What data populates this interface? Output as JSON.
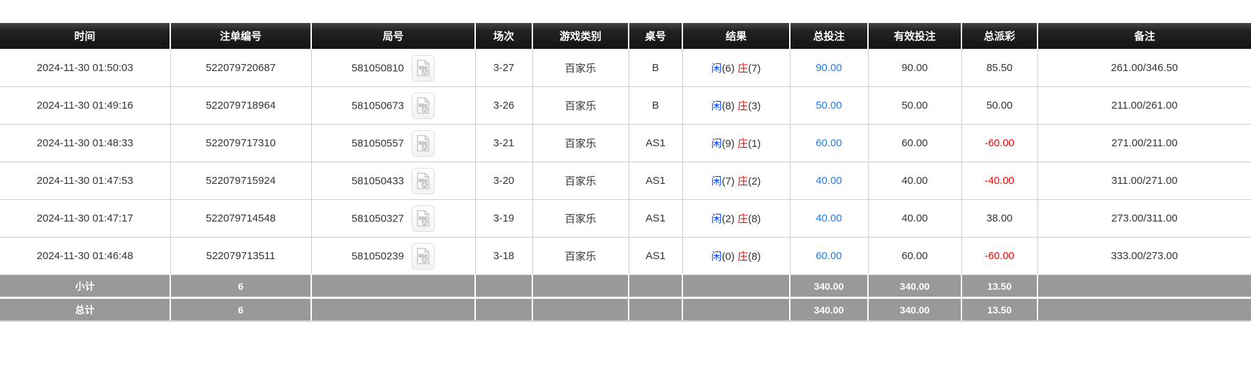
{
  "colors": {
    "header_bg": "#161616",
    "header_text": "#ffffff",
    "summary_bg": "#999999",
    "player_blue": "#0040ff",
    "banker_red": "#ff0000",
    "bet_blue": "#1d7df2",
    "negative_red": "#ff0000"
  },
  "table": {
    "columns": [
      {
        "key": "time",
        "label": "时间"
      },
      {
        "key": "order_no",
        "label": "注单编号"
      },
      {
        "key": "round_no",
        "label": "局号"
      },
      {
        "key": "session",
        "label": "场次"
      },
      {
        "key": "game_type",
        "label": "游戏类别"
      },
      {
        "key": "table_no",
        "label": "桌号"
      },
      {
        "key": "result",
        "label": "结果"
      },
      {
        "key": "total_bet",
        "label": "总投注"
      },
      {
        "key": "valid_bet",
        "label": "有效投注"
      },
      {
        "key": "payout",
        "label": "总派彩"
      },
      {
        "key": "remark",
        "label": "备注"
      }
    ],
    "icons": {
      "round_video_icon": "video-replay-icon"
    },
    "rows": [
      {
        "time": "2024-11-30 01:50:03",
        "order_no": "522079720687",
        "round_no": "581050810",
        "session": "3-27",
        "game_type": "百家乐",
        "table_no": "B",
        "result": {
          "player_label": "闲",
          "player_score": "(6)",
          "banker_label": "庄",
          "banker_score": "(7)"
        },
        "total_bet": "90.00",
        "valid_bet": "90.00",
        "payout": "85.50",
        "remark": "261.00/346.50"
      },
      {
        "time": "2024-11-30 01:49:16",
        "order_no": "522079718964",
        "round_no": "581050673",
        "session": "3-26",
        "game_type": "百家乐",
        "table_no": "B",
        "result": {
          "player_label": "闲",
          "player_score": "(8)",
          "banker_label": "庄",
          "banker_score": "(3)"
        },
        "total_bet": "50.00",
        "valid_bet": "50.00",
        "payout": "50.00",
        "remark": "211.00/261.00"
      },
      {
        "time": "2024-11-30 01:48:33",
        "order_no": "522079717310",
        "round_no": "581050557",
        "session": "3-21",
        "game_type": "百家乐",
        "table_no": "AS1",
        "result": {
          "player_label": "闲",
          "player_score": "(9)",
          "banker_label": "庄",
          "banker_score": "(1)"
        },
        "total_bet": "60.00",
        "valid_bet": "60.00",
        "payout": "-60.00",
        "remark": "271.00/211.00"
      },
      {
        "time": "2024-11-30 01:47:53",
        "order_no": "522079715924",
        "round_no": "581050433",
        "session": "3-20",
        "game_type": "百家乐",
        "table_no": "AS1",
        "result": {
          "player_label": "闲",
          "player_score": "(7)",
          "banker_label": "庄",
          "banker_score": "(2)"
        },
        "total_bet": "40.00",
        "valid_bet": "40.00",
        "payout": "-40.00",
        "remark": "311.00/271.00"
      },
      {
        "time": "2024-11-30 01:47:17",
        "order_no": "522079714548",
        "round_no": "581050327",
        "session": "3-19",
        "game_type": "百家乐",
        "table_no": "AS1",
        "result": {
          "player_label": "闲",
          "player_score": "(2)",
          "banker_label": "庄",
          "banker_score": "(8)"
        },
        "total_bet": "40.00",
        "valid_bet": "40.00",
        "payout": "38.00",
        "remark": "273.00/311.00"
      },
      {
        "time": "2024-11-30 01:46:48",
        "order_no": "522079713511",
        "round_no": "581050239",
        "session": "3-18",
        "game_type": "百家乐",
        "table_no": "AS1",
        "result": {
          "player_label": "闲",
          "player_score": "(0)",
          "banker_label": "庄",
          "banker_score": "(8)"
        },
        "total_bet": "60.00",
        "valid_bet": "60.00",
        "payout": "-60.00",
        "remark": "333.00/273.00"
      }
    ],
    "summary_rows": [
      {
        "label": "小计",
        "count": "6",
        "total_bet": "340.00",
        "valid_bet": "340.00",
        "payout": "13.50",
        "remark": ""
      },
      {
        "label": "总计",
        "count": "6",
        "total_bet": "340.00",
        "valid_bet": "340.00",
        "payout": "13.50",
        "remark": ""
      }
    ]
  }
}
